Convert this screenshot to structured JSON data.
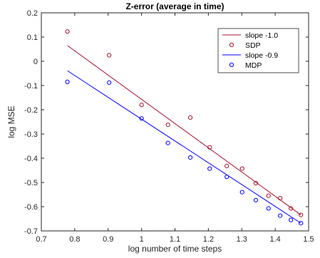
{
  "chart_data": {
    "type": "scatter",
    "title": "Z-error (average in time)",
    "xlabel": "log number of time steps",
    "ylabel": "log MSE",
    "xlim": [
      0.7,
      1.5
    ],
    "ylim": [
      -0.7,
      0.2
    ],
    "xticks": [
      "0.7",
      "0.8",
      "0.9",
      "1",
      "1.1",
      "1.2",
      "1.3",
      "1.4",
      "1.5"
    ],
    "yticks": [
      "-0.7",
      "-0.6",
      "-0.5",
      "-0.4",
      "-0.3",
      "-0.2",
      "-0.1",
      "0",
      "0.1",
      "0.2"
    ],
    "grid": false,
    "legend_position": "top-right",
    "series": [
      {
        "name": "slope -1.0",
        "kind": "line",
        "color": "#a2142f",
        "x": [
          0.778,
          1.477
        ],
        "y": [
          0.065,
          -0.634
        ]
      },
      {
        "name": "SDP",
        "kind": "markers",
        "color": "#a2142f",
        "x": [
          0.778,
          0.903,
          1.0,
          1.079,
          1.146,
          1.204,
          1.255,
          1.301,
          1.342,
          1.38,
          1.415,
          1.447,
          1.477
        ],
        "y": [
          0.123,
          0.025,
          -0.18,
          -0.262,
          -0.232,
          -0.355,
          -0.432,
          -0.443,
          -0.503,
          -0.555,
          -0.565,
          -0.607,
          -0.634
        ]
      },
      {
        "name": "slope -0.9",
        "kind": "line",
        "color": "#0000ff",
        "x": [
          0.778,
          1.477
        ],
        "y": [
          -0.039,
          -0.668
        ]
      },
      {
        "name": "MDP",
        "kind": "markers",
        "color": "#0000ff",
        "x": [
          0.778,
          0.903,
          1.0,
          1.079,
          1.146,
          1.204,
          1.255,
          1.301,
          1.342,
          1.38,
          1.415,
          1.447,
          1.477
        ],
        "y": [
          -0.085,
          -0.088,
          -0.236,
          -0.337,
          -0.397,
          -0.443,
          -0.477,
          -0.54,
          -0.573,
          -0.607,
          -0.637,
          -0.655,
          -0.668
        ]
      }
    ]
  }
}
